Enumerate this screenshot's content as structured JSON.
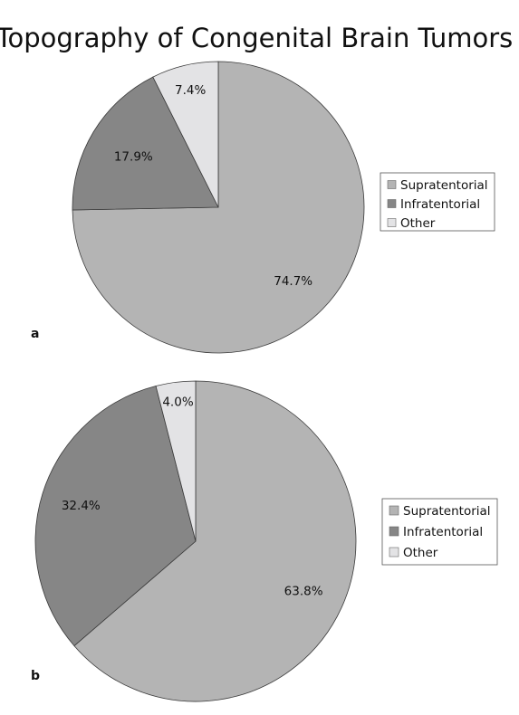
{
  "title": "Topography of Congenital Brain Tumors",
  "chart_data": [
    {
      "type": "pie",
      "panel": "a",
      "slices": [
        {
          "name": "Supratentorial",
          "value": 74.7,
          "label": "74.7%",
          "color": "#b4b4b4"
        },
        {
          "name": "Infratentorial",
          "value": 17.9,
          "label": "17.9%",
          "color": "#868686"
        },
        {
          "name": "Other",
          "value": 7.4,
          "label": "7.4%",
          "color": "#e3e3e5"
        }
      ],
      "legend": [
        "Supratentorial",
        "Infratentorial",
        "Other"
      ],
      "legend_position": "right",
      "start_direction": "12 o'clock",
      "direction": "clockwise"
    },
    {
      "type": "pie",
      "panel": "b",
      "slices": [
        {
          "name": "Supratentorial",
          "value": 63.8,
          "label": "63.8%",
          "color": "#b4b4b4"
        },
        {
          "name": "Infratentorial",
          "value": 32.4,
          "label": "32.4%",
          "color": "#868686"
        },
        {
          "name": "Other",
          "value": 4.0,
          "label": "4.0%",
          "color": "#e3e3e5"
        }
      ],
      "legend": [
        "Supratentorial",
        "Infratentorial",
        "Other"
      ],
      "legend_position": "right",
      "start_direction": "12 o'clock",
      "direction": "clockwise"
    }
  ]
}
